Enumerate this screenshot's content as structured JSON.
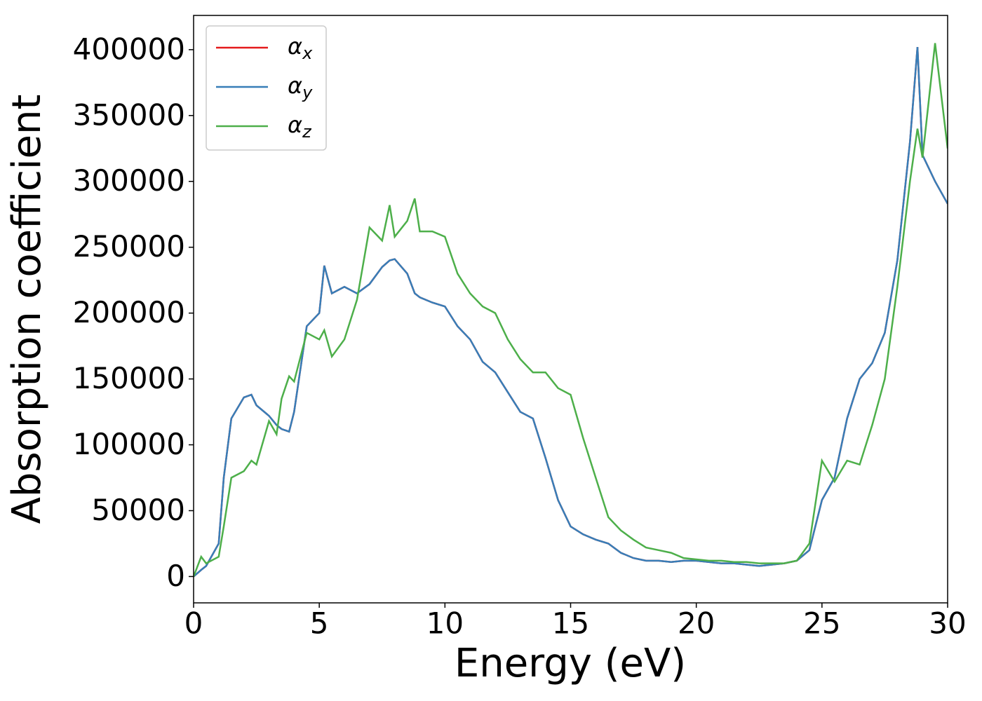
{
  "chart_data": {
    "type": "line",
    "xlabel": "Energy (eV)",
    "ylabel": "Absorption coefficient",
    "x": [
      0,
      0.3,
      0.5,
      1,
      1.2,
      1.5,
      2,
      2.3,
      2.5,
      3,
      3.3,
      3.5,
      3.8,
      4,
      4.5,
      5,
      5.2,
      5.5,
      6,
      6.5,
      7,
      7.5,
      7.8,
      8,
      8.5,
      8.8,
      9,
      9.5,
      10,
      10.5,
      11,
      11.5,
      12,
      12.5,
      13,
      13.5,
      14,
      14.5,
      15,
      15.5,
      16,
      16.5,
      17,
      17.5,
      18,
      18.5,
      19,
      19.5,
      20,
      20.5,
      21,
      21.5,
      22,
      22.5,
      23,
      23.5,
      24,
      24.5,
      25,
      25.5,
      26,
      26.5,
      27,
      27.5,
      28,
      28.5,
      28.8,
      29,
      29.5,
      30
    ],
    "series": [
      {
        "name": "αx",
        "color": "#e41a1c",
        "values": [
          0,
          5000,
          8000,
          25000,
          75000,
          120000,
          136000,
          138000,
          130000,
          122000,
          115000,
          112000,
          110000,
          125000,
          190000,
          200000,
          236000,
          215000,
          220000,
          215000,
          222000,
          235000,
          240000,
          241000,
          230000,
          215000,
          212000,
          208000,
          205000,
          190000,
          180000,
          163000,
          155000,
          140000,
          125000,
          120000,
          90000,
          58000,
          38000,
          32000,
          28000,
          25000,
          18000,
          14000,
          12000,
          12000,
          11000,
          12000,
          12000,
          11000,
          10000,
          10000,
          9000,
          8000,
          9000,
          10000,
          12000,
          20000,
          58000,
          75000,
          120000,
          150000,
          162000,
          185000,
          240000,
          330000,
          402000,
          320000,
          300000,
          283000
        ]
      },
      {
        "name": "αy",
        "color": "#377eb8",
        "values": [
          0,
          5000,
          8000,
          25000,
          75000,
          120000,
          136000,
          138000,
          130000,
          122000,
          115000,
          112000,
          110000,
          125000,
          190000,
          200000,
          236000,
          215000,
          220000,
          215000,
          222000,
          235000,
          240000,
          241000,
          230000,
          215000,
          212000,
          208000,
          205000,
          190000,
          180000,
          163000,
          155000,
          140000,
          125000,
          120000,
          90000,
          58000,
          38000,
          32000,
          28000,
          25000,
          18000,
          14000,
          12000,
          12000,
          11000,
          12000,
          12000,
          11000,
          10000,
          10000,
          9000,
          8000,
          9000,
          10000,
          12000,
          20000,
          58000,
          75000,
          120000,
          150000,
          162000,
          185000,
          240000,
          330000,
          402000,
          320000,
          300000,
          283000
        ]
      },
      {
        "name": "αz",
        "color": "#4daf4a",
        "values": [
          0,
          15000,
          10000,
          15000,
          38000,
          75000,
          80000,
          88000,
          85000,
          118000,
          108000,
          135000,
          152000,
          148000,
          185000,
          180000,
          187000,
          167000,
          180000,
          210000,
          265000,
          255000,
          282000,
          258000,
          270000,
          287000,
          262000,
          262000,
          258000,
          230000,
          215000,
          205000,
          200000,
          180000,
          165000,
          155000,
          155000,
          143000,
          138000,
          105000,
          75000,
          45000,
          35000,
          28000,
          22000,
          20000,
          18000,
          14000,
          13000,
          12000,
          12000,
          11000,
          11000,
          10000,
          10000,
          10000,
          12000,
          25000,
          88000,
          72000,
          88000,
          85000,
          115000,
          150000,
          220000,
          300000,
          340000,
          318000,
          405000,
          325000
        ]
      }
    ],
    "xlim": [
      0,
      30
    ],
    "xticks": [
      0,
      5,
      10,
      15,
      20,
      25,
      30
    ],
    "ylim": [
      -20000,
      426000
    ],
    "yticks": [
      0,
      50000,
      100000,
      150000,
      200000,
      250000,
      300000,
      350000,
      400000
    ],
    "grid": false,
    "legend": "upper left"
  }
}
